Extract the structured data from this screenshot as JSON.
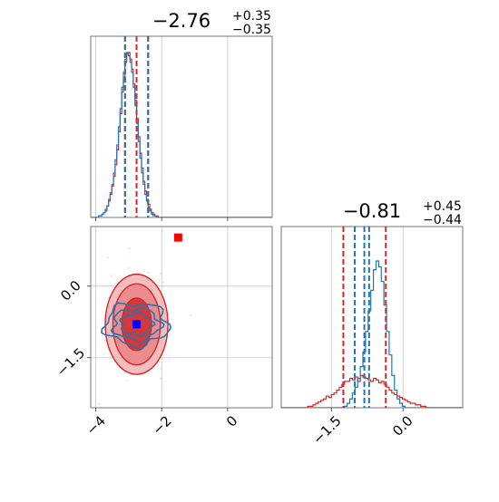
{
  "colors": {
    "red": "#d62728",
    "blue": "#1f77b4",
    "grid": "#c8c8c8",
    "truth_marker_1": "#ff0000",
    "truth_marker_2": "#0000ff"
  },
  "chart_data": [
    {
      "type": "histogram",
      "panel": "top-left",
      "title_value": "−2.76",
      "title_plus": "+0.35",
      "title_minus": "−0.35",
      "xlim": [
        -4.15,
        1.35
      ],
      "grid": true,
      "bin_edges_x": [
        -4.15,
        1.35
      ],
      "series": [
        {
          "color": "red",
          "bin_start": -4.06,
          "bin_width": 0.05,
          "counts": [
            0,
            0,
            0,
            1,
            1,
            2,
            3,
            4,
            7,
            10,
            14,
            19,
            25,
            32,
            41,
            52,
            63,
            76,
            85,
            94,
            99,
            100,
            96,
            90,
            81,
            71,
            60,
            49,
            39,
            30,
            22,
            16,
            11,
            8,
            5,
            3,
            2,
            1,
            1,
            0,
            0,
            0
          ]
        },
        {
          "color": "blue",
          "bin_start": -4.06,
          "bin_width": 0.05,
          "counts": [
            0,
            0,
            0,
            1,
            1,
            2,
            3,
            5,
            7,
            11,
            15,
            20,
            27,
            35,
            44,
            55,
            66,
            79,
            88,
            96,
            100,
            98,
            94,
            88,
            79,
            68,
            57,
            46,
            36,
            27,
            20,
            14,
            10,
            6,
            4,
            2,
            1,
            1,
            0,
            0,
            0,
            0
          ]
        }
      ],
      "quantile_lines": {
        "red": [
          -3.11,
          -2.76,
          -2.41
        ],
        "blue": [
          -3.11,
          -2.41
        ]
      }
    },
    {
      "type": "scatter-contour",
      "panel": "bottom-left",
      "xlim": [
        -4.15,
        1.35
      ],
      "ylim": [
        -2.55,
        1.25
      ],
      "x_ticks": [
        -4,
        -2,
        0
      ],
      "x_tick_labels": [
        "−4",
        "−2",
        "0"
      ],
      "y_ticks": [
        0.0,
        -1.5
      ],
      "y_tick_labels": [
        "0.0",
        "−1.5"
      ],
      "grid": true,
      "red_contours": [
        {
          "level": "outer",
          "cx": -2.76,
          "cy": -0.8,
          "rx": 0.95,
          "ry": 1.05
        },
        {
          "level": "middle",
          "cx": -2.76,
          "cy": -0.8,
          "rx": 0.72,
          "ry": 0.85
        },
        {
          "level": "inner",
          "cx": -2.76,
          "cy": -0.8,
          "rx": 0.45,
          "ry": 0.55
        }
      ],
      "blue_contour": {
        "cx": -2.76,
        "cy": -0.8,
        "rx": 0.95,
        "ry": 0.4
      },
      "markers": [
        {
          "x": -1.5,
          "y": 1.02,
          "color": "truth_marker_1",
          "shape": "square"
        },
        {
          "x": -2.76,
          "y": -0.8,
          "color": "truth_marker_2",
          "shape": "square"
        }
      ]
    },
    {
      "type": "histogram",
      "panel": "bottom-right",
      "title_value": "−0.81",
      "title_plus": "+0.45",
      "title_minus": "−0.44",
      "xlim": [
        -2.55,
        1.25
      ],
      "x_ticks": [
        -1.5,
        0.0
      ],
      "x_tick_labels": [
        "−1.5",
        "0.0"
      ],
      "grid": true,
      "series": [
        {
          "color": "red",
          "bin_start": -2.05,
          "bin_width": 0.055,
          "counts": [
            0,
            1,
            1,
            2,
            3,
            4,
            5,
            6,
            8,
            7,
            9,
            10,
            12,
            14,
            16,
            18,
            18,
            20,
            19,
            21,
            18,
            22,
            21,
            20,
            19,
            18,
            20,
            19,
            17,
            18,
            16,
            14,
            12,
            10,
            9,
            8,
            7,
            6,
            5,
            4,
            3,
            3,
            2,
            2,
            1,
            1,
            0
          ]
        },
        {
          "color": "blue",
          "bin_start": -2.05,
          "bin_width": 0.055,
          "counts": [
            0,
            0,
            0,
            0,
            0,
            0,
            0,
            0,
            0,
            0,
            0,
            0,
            0,
            0,
            0,
            1,
            3,
            6,
            10,
            14,
            20,
            28,
            38,
            52,
            66,
            80,
            94,
            100,
            96,
            86,
            70,
            52,
            36,
            22,
            12,
            6,
            3,
            1,
            0,
            0,
            0,
            0,
            0,
            0,
            0,
            0,
            0
          ]
        }
      ],
      "quantile_lines": {
        "red": [
          -1.25,
          -0.36
        ],
        "blue": [
          -1.01,
          -0.81,
          -0.71
        ]
      }
    }
  ]
}
